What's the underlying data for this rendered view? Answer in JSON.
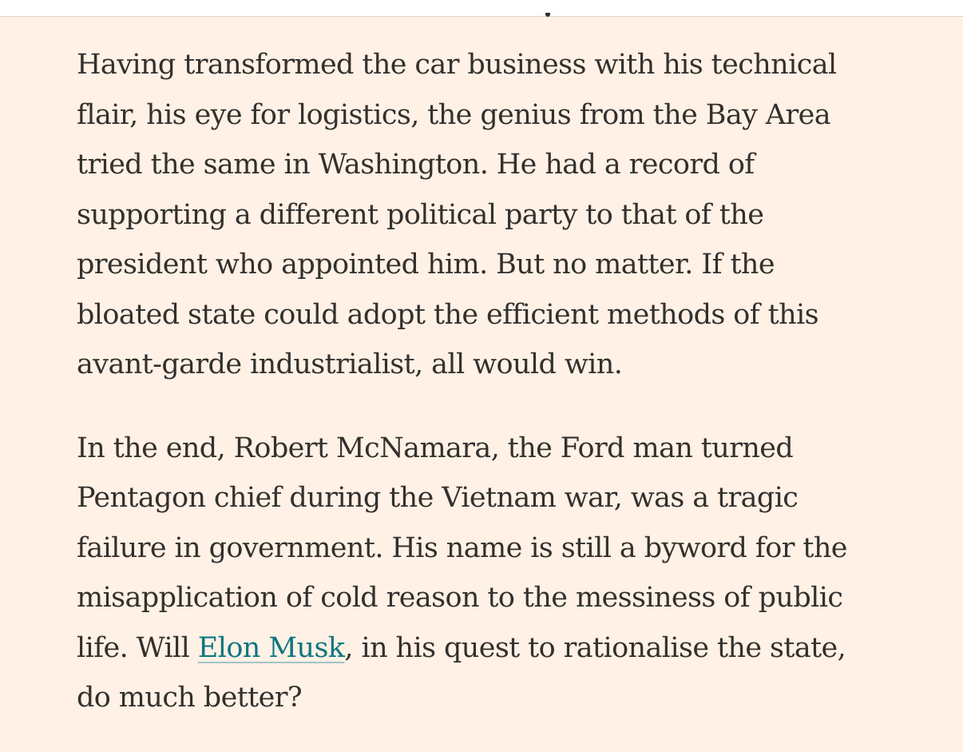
{
  "colors": {
    "background": "#fff1e5",
    "text": "#33302e",
    "link": "#0d7680"
  },
  "article": {
    "paragraph_1": "Having transformed the car business with his technical\nflair, his eye for logistics, the genius from the Bay Area\ntried the same in Washington. He had a record of\nsupporting a different political party to that of the\npresident who appointed him. But no matter. If the\nbloated state could adopt the efficient methods of this\navant-garde industrialist, all would win.",
    "paragraph_2_before_link": "In the end, Robert McNamara, the Ford man turned\nPentagon chief during the Vietnam war, was a tragic\nfailure in government. His name is still a byword for the\nmisapplication of cold reason to the messiness of public\nlife. Will ",
    "paragraph_2_link": "Elon Musk",
    "paragraph_2_after_link": ", in his quest to rationalise the state,\ndo much better?"
  }
}
